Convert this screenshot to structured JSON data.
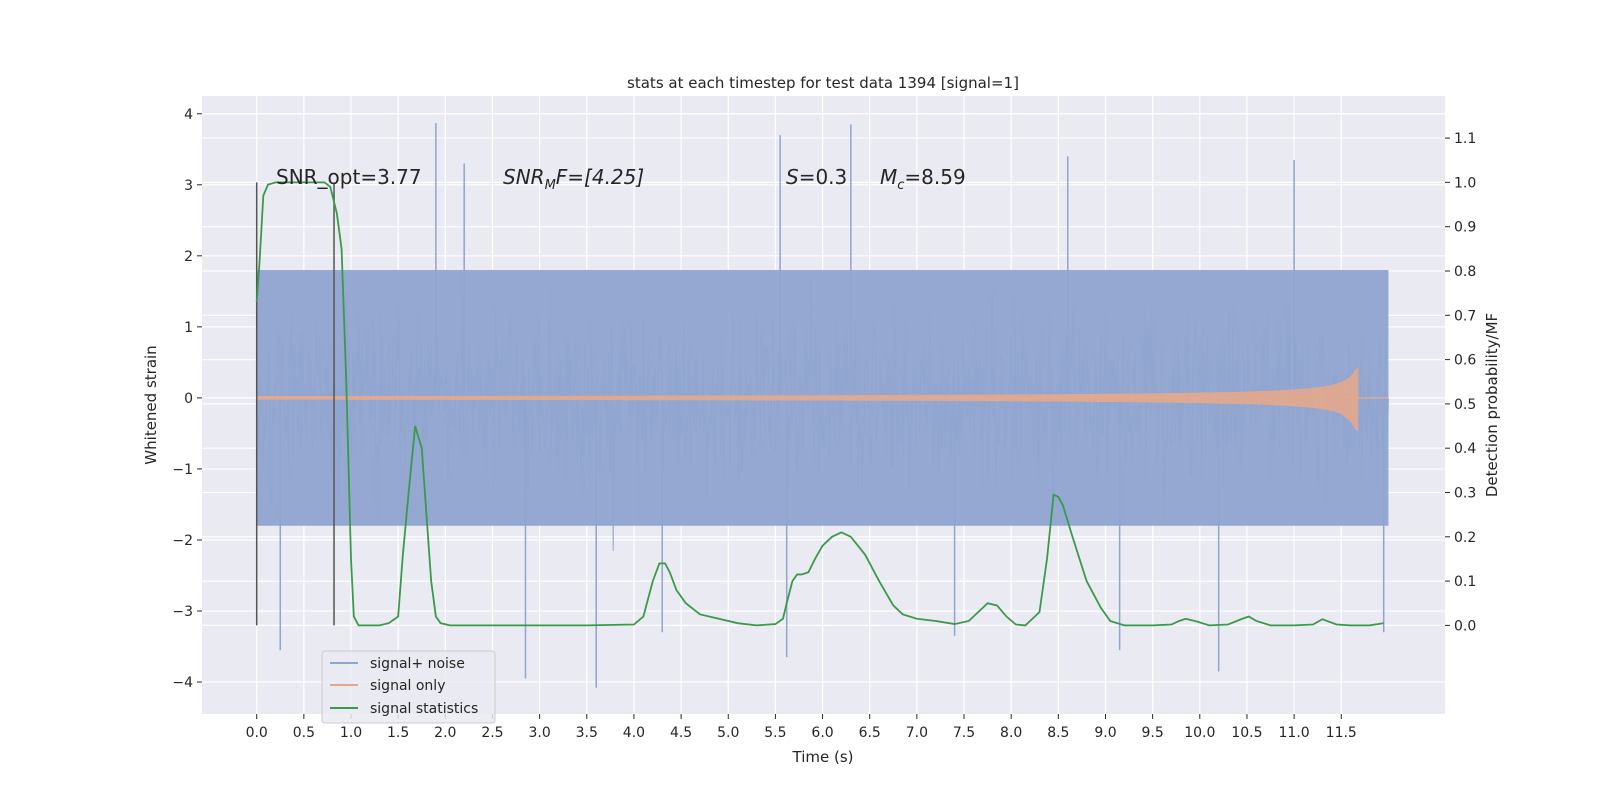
{
  "chart_data": {
    "type": "line",
    "title": "stats at each timestep for test data 1394 [signal=1]",
    "xlabel": "Time (s)",
    "ylabel": "Whitened strain",
    "y2label": "Detection probability/MF",
    "xlim": [
      -0.58,
      12.6
    ],
    "ylim": [
      -4.45,
      4.25
    ],
    "y2lim": [
      -0.2,
      1.195
    ],
    "x_ticks": [
      0.0,
      0.5,
      1.0,
      1.5,
      2.0,
      2.5,
      3.0,
      3.5,
      4.0,
      4.5,
      5.0,
      5.5,
      6.0,
      6.5,
      7.0,
      7.5,
      8.0,
      8.5,
      9.0,
      9.5,
      10.0,
      10.5,
      11.0,
      11.5
    ],
    "x_tick_labels": [
      "0.0",
      "0.5",
      "1.0",
      "1.5",
      "2.0",
      "2.5",
      "3.0",
      "3.5",
      "4.0",
      "4.5",
      "5.0",
      "5.5",
      "6.0",
      "6.5",
      "7.0",
      "7.5",
      "8.0",
      "8.5",
      "9.0",
      "9.5",
      "10.0",
      "10.5",
      "11.0",
      "11.5"
    ],
    "y_ticks": [
      -4,
      -3,
      -2,
      -1,
      0,
      1,
      2,
      3,
      4
    ],
    "y_tick_labels": [
      "−4",
      "−3",
      "−2",
      "−1",
      "0",
      "1",
      "2",
      "3",
      "4"
    ],
    "y2_ticks": [
      0.0,
      0.1,
      0.2,
      0.3,
      0.4,
      0.5,
      0.6,
      0.7,
      0.8,
      0.9,
      1.0,
      1.1
    ],
    "y2_tick_labels": [
      "0.0",
      "0.1",
      "0.2",
      "0.3",
      "0.4",
      "0.5",
      "0.6",
      "0.7",
      "0.8",
      "0.9",
      "1.0",
      "1.1"
    ],
    "grid": true,
    "legend_position": "bottom-left",
    "annotations": {
      "snr_opt": "SNR_opt=3.77",
      "snr_mf_prefix": "SNR",
      "snr_mf_sub": "M",
      "snr_mf_suffix": "F=[4.25]",
      "s_var": "S",
      "s_value": "=0.3",
      "mc_var": "M",
      "mc_sub": "c",
      "mc_value": "=8.59"
    },
    "vlines_x": [
      0.0,
      0.82
    ],
    "noise": {
      "name": "signal+ noise",
      "color": "#8fa4cf",
      "x_range": [
        0.0,
        12.0
      ],
      "band_abs": 1.8,
      "samples": 1200,
      "seed": 1394,
      "spikes": [
        {
          "x": 0.25,
          "y": -3.55
        },
        {
          "x": 1.9,
          "y": 3.87
        },
        {
          "x": 2.85,
          "y": -3.95
        },
        {
          "x": 3.6,
          "y": -4.08
        },
        {
          "x": 5.55,
          "y": 3.7
        },
        {
          "x": 5.62,
          "y": -3.65
        },
        {
          "x": 6.3,
          "y": 3.85
        },
        {
          "x": 7.4,
          "y": -3.35
        },
        {
          "x": 9.15,
          "y": -3.55
        },
        {
          "x": 10.2,
          "y": -3.85
        },
        {
          "x": 11.0,
          "y": 3.35
        },
        {
          "x": 4.3,
          "y": -3.3
        },
        {
          "x": 2.2,
          "y": 3.3
        },
        {
          "x": 8.6,
          "y": 3.4
        },
        {
          "x": 11.95,
          "y": -3.3
        }
      ]
    },
    "signal_only": {
      "name": "signal only",
      "color": "#e4a88c",
      "x_range": [
        0.0,
        12.0
      ],
      "peak_time": 11.68,
      "peak_amp": 0.52
    },
    "series": [
      {
        "name": "signal statistics",
        "color": "#3a9a4a",
        "x": [
          0.0,
          0.03,
          0.07,
          0.12,
          0.2,
          0.3,
          0.45,
          0.6,
          0.72,
          0.78,
          0.85,
          0.9,
          0.95,
          1.0,
          1.03,
          1.08,
          1.15,
          1.3,
          1.4,
          1.5,
          1.55,
          1.62,
          1.68,
          1.75,
          1.8,
          1.85,
          1.9,
          1.95,
          2.05,
          2.2,
          2.5,
          3.0,
          3.5,
          4.0,
          4.1,
          4.2,
          4.27,
          4.33,
          4.38,
          4.45,
          4.55,
          4.7,
          4.9,
          5.1,
          5.3,
          5.5,
          5.58,
          5.62,
          5.68,
          5.73,
          5.78,
          5.85,
          5.92,
          6.0,
          6.1,
          6.2,
          6.3,
          6.45,
          6.6,
          6.75,
          6.85,
          7.0,
          7.2,
          7.4,
          7.55,
          7.65,
          7.75,
          7.85,
          7.95,
          8.05,
          8.15,
          8.3,
          8.38,
          8.45,
          8.5,
          8.55,
          8.65,
          8.8,
          8.95,
          9.05,
          9.2,
          9.5,
          9.7,
          9.78,
          9.85,
          9.95,
          10.1,
          10.3,
          10.45,
          10.52,
          10.6,
          10.75,
          11.0,
          11.2,
          11.3,
          11.45,
          11.6,
          11.8,
          11.95
        ],
        "y": [
          0.73,
          0.82,
          0.97,
          0.995,
          1.0,
          1.0,
          1.0,
          1.0,
          1.0,
          0.99,
          0.93,
          0.85,
          0.55,
          0.15,
          0.02,
          0.0,
          0.0,
          0.0,
          0.005,
          0.02,
          0.16,
          0.32,
          0.45,
          0.4,
          0.25,
          0.1,
          0.02,
          0.005,
          0.0,
          0.0,
          0.0,
          0.0,
          0.0,
          0.002,
          0.02,
          0.1,
          0.14,
          0.14,
          0.12,
          0.08,
          0.05,
          0.025,
          0.015,
          0.005,
          0.0,
          0.003,
          0.015,
          0.05,
          0.1,
          0.115,
          0.115,
          0.12,
          0.15,
          0.18,
          0.2,
          0.21,
          0.2,
          0.16,
          0.1,
          0.045,
          0.025,
          0.015,
          0.01,
          0.003,
          0.01,
          0.03,
          0.05,
          0.045,
          0.02,
          0.002,
          0.0,
          0.03,
          0.15,
          0.295,
          0.29,
          0.27,
          0.2,
          0.1,
          0.04,
          0.01,
          0.0,
          0.0,
          0.002,
          0.01,
          0.015,
          0.01,
          0.0,
          0.002,
          0.015,
          0.02,
          0.01,
          0.0,
          0.0,
          0.002,
          0.014,
          0.002,
          0.0,
          0.0,
          0.005
        ]
      }
    ]
  }
}
